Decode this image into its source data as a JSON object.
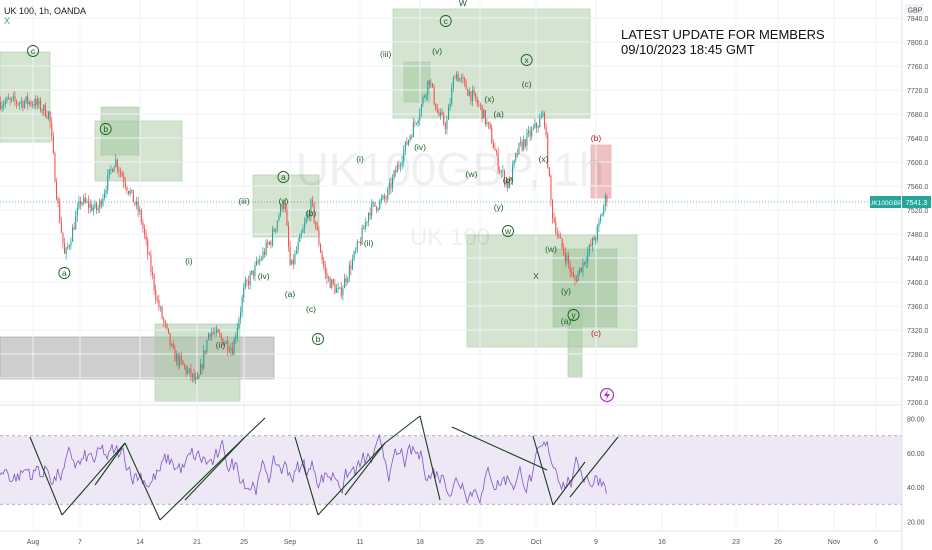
{
  "header": {
    "symbol_line": "UK 100, 1h, OANDA",
    "sub_mark": "X"
  },
  "note": {
    "line1": "LATEST UPDATE FOR MEMBERS",
    "line2": "09/10/2023 18:45 GMT"
  },
  "watermark": {
    "big": "UK100GBP, 1h",
    "small": "UK 100"
  },
  "price_axis": {
    "currency": "GBP",
    "ticks": [
      "7840.0",
      "7800.0",
      "7760.0",
      "7720.0",
      "7680.0",
      "7640.0",
      "7600.0",
      "7560.0",
      "7520.0",
      "7480.0",
      "7440.0",
      "7400.0",
      "7360.0",
      "7320.0",
      "7280.0",
      "7240.0",
      "7200.0"
    ],
    "last_label": "UK100GBP",
    "last_value": "7541.3"
  },
  "rsi_axis": {
    "ticks": [
      "80.00",
      "60.00",
      "40.00",
      "20.00"
    ]
  },
  "time_axis": {
    "ticks": [
      "Aug",
      "7",
      "14",
      "21",
      "25",
      "Sep",
      "11",
      "18",
      "25",
      "Oct",
      "9",
      "16",
      "23",
      "26",
      "Nov",
      "6"
    ]
  },
  "colors": {
    "up": "#26a69a",
    "down": "#ef5350",
    "zone": "#a9c9a4",
    "grey_zone": "#9e9e9e",
    "pink_zone": "#e8a6a9",
    "rsi_line": "#7e57c2",
    "rsi_band": "#ede7f6",
    "wave": "#1b5e20"
  },
  "chart_data": {
    "type": "candlestick",
    "timeframe": "1h",
    "ylim": [
      7200,
      7860
    ],
    "last_price": 7541.3,
    "price_path": [
      {
        "x": "Aug 1",
        "y": 7700
      },
      {
        "x": "Aug 3",
        "y": 7680
      },
      {
        "x": "Aug 4",
        "y": 7540
      },
      {
        "x": "Aug 5",
        "y": 7440
      },
      {
        "x": "Aug 7",
        "y": 7535
      },
      {
        "x": "Aug 9",
        "y": 7520
      },
      {
        "x": "Aug 11",
        "y": 7605
      },
      {
        "x": "Aug 14",
        "y": 7510
      },
      {
        "x": "Aug 16",
        "y": 7370
      },
      {
        "x": "Aug 18",
        "y": 7280
      },
      {
        "x": "Aug 21",
        "y": 7230
      },
      {
        "x": "Aug 22",
        "y": 7320
      },
      {
        "x": "Aug 24",
        "y": 7290
      },
      {
        "x": "Aug 25",
        "y": 7390
      },
      {
        "x": "Aug 29",
        "y": 7470
      },
      {
        "x": "Aug 31",
        "y": 7540
      },
      {
        "x": "Sep 1",
        "y": 7420
      },
      {
        "x": "Sep 4",
        "y": 7530
      },
      {
        "x": "Sep 6",
        "y": 7410
      },
      {
        "x": "Sep 8",
        "y": 7380
      },
      {
        "x": "Sep 11",
        "y": 7470
      },
      {
        "x": "Sep 12",
        "y": 7520
      },
      {
        "x": "Sep 14",
        "y": 7540
      },
      {
        "x": "Sep 15",
        "y": 7580
      },
      {
        "x": "Sep 18",
        "y": 7690
      },
      {
        "x": "Sep 19",
        "y": 7740
      },
      {
        "x": "Sep 20",
        "y": 7680
      },
      {
        "x": "Sep 21",
        "y": 7660
      },
      {
        "x": "Sep 22",
        "y": 7750
      },
      {
        "x": "Sep 25",
        "y": 7690
      },
      {
        "x": "Sep 26",
        "y": 7650
      },
      {
        "x": "Sep 27",
        "y": 7590
      },
      {
        "x": "Sep 28",
        "y": 7560
      },
      {
        "x": "Sep 29",
        "y": 7620
      },
      {
        "x": "Oct 2",
        "y": 7680
      },
      {
        "x": "Oct 3",
        "y": 7520
      },
      {
        "x": "Oct 4",
        "y": 7470
      },
      {
        "x": "Oct 5",
        "y": 7440
      },
      {
        "x": "Oct 6",
        "y": 7400
      },
      {
        "x": "Oct 9",
        "y": 7480
      },
      {
        "x": "Oct 10",
        "y": 7541
      }
    ],
    "rsi_ylim": [
      15,
      85
    ],
    "rsi_levels": [
      70,
      30
    ],
    "wave_labels": [
      {
        "text": "c",
        "x": "Aug 1",
        "y": 7780,
        "circled": true
      },
      {
        "text": "b",
        "x": "Aug 10",
        "y": 7650,
        "circled": true
      },
      {
        "text": "a",
        "x": "Aug 5",
        "y": 7410,
        "circled": true
      },
      {
        "text": "(i)",
        "x": "Aug 20",
        "y": 7430
      },
      {
        "text": "(ii)",
        "x": "Aug 23",
        "y": 7290
      },
      {
        "text": "(iii)",
        "x": "Aug 25",
        "y": 7530
      },
      {
        "text": "(iv)",
        "x": "Aug 28",
        "y": 7405
      },
      {
        "text": "(v)",
        "x": "Aug 31",
        "y": 7530
      },
      {
        "text": "a",
        "x": "Aug 31",
        "y": 7570,
        "circled": true
      },
      {
        "text": "(b)",
        "x": "Sep 4",
        "y": 7510
      },
      {
        "text": "(a)",
        "x": "Sep 1",
        "y": 7375
      },
      {
        "text": "(c)",
        "x": "Sep 4",
        "y": 7350
      },
      {
        "text": "b",
        "x": "Sep 5",
        "y": 7300,
        "circled": true
      },
      {
        "text": "(i)",
        "x": "Sep 11",
        "y": 7600
      },
      {
        "text": "(ii)",
        "x": "Sep 12",
        "y": 7460
      },
      {
        "text": "(iii)",
        "x": "Sep 14",
        "y": 7775
      },
      {
        "text": "(iv)",
        "x": "Sep 18",
        "y": 7620
      },
      {
        "text": "(v)",
        "x": "Sep 20",
        "y": 7780
      },
      {
        "text": "c",
        "x": "Sep 21",
        "y": 7830,
        "circled": true
      },
      {
        "text": "W",
        "x": "Sep 23",
        "y": 7860
      },
      {
        "text": "(x)",
        "x": "Sep 26",
        "y": 7700
      },
      {
        "text": "(w)",
        "x": "Sep 24",
        "y": 7575
      },
      {
        "text": "(a)",
        "x": "Sep 27",
        "y": 7675
      },
      {
        "text": "(b)",
        "x": "Sep 28",
        "y": 7565
      },
      {
        "text": "(y)",
        "x": "Sep 27",
        "y": 7520
      },
      {
        "text": "w",
        "x": "Sep 28",
        "y": 7480,
        "circled": true
      },
      {
        "text": "x",
        "x": "Sep 30",
        "y": 7765,
        "circled": true
      },
      {
        "text": "(c)",
        "x": "Sep 30",
        "y": 7725
      },
      {
        "text": "(x)",
        "x": "Oct 2",
        "y": 7600
      },
      {
        "text": "(w)",
        "x": "Oct 3",
        "y": 7450
      },
      {
        "text": "X",
        "x": "Oct 1",
        "y": 7405
      },
      {
        "text": "(y)",
        "x": "Oct 5",
        "y": 7380
      },
      {
        "text": "(a)",
        "x": "Oct 5",
        "y": 7330
      },
      {
        "text": "y",
        "x": "Oct 6",
        "y": 7340,
        "circled": true
      },
      {
        "text": "(b)",
        "x": "Oct 9",
        "y": 7635
      },
      {
        "text": "(c)",
        "x": "Oct 9",
        "y": 7310
      }
    ]
  }
}
